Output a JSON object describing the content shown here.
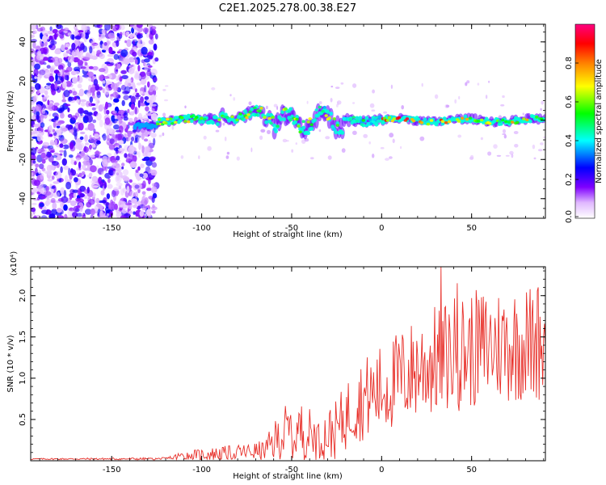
{
  "chart_data": [
    {
      "type": "heatmap",
      "title": "C2E1.2025.278.00.38.E27",
      "xlabel": "Height of straight line (km)",
      "ylabel": "Frequency (Hz)",
      "xlim": [
        -195,
        91
      ],
      "ylim": [
        -50,
        49
      ],
      "xticks": [
        -150,
        -100,
        -50,
        0,
        50
      ],
      "yticks": [
        -40,
        -20,
        0,
        20,
        40
      ],
      "colorbar": {
        "label": "Normalized spectral amplitude",
        "range": [
          0,
          1
        ],
        "ticks": [
          "0.0",
          "0.2",
          "0.4",
          "0.6",
          "0.8"
        ],
        "colors": [
          "#ffffff",
          "#7f00ff",
          "#0000ff",
          "#00ffff",
          "#00ff00",
          "#ffff00",
          "#ff7f00",
          "#ff0000",
          "#ff007f"
        ]
      },
      "regions": [
        {
          "name": "noise",
          "x": [
            -195,
            -125
          ],
          "freq_spread": [
            -50,
            49
          ],
          "amplitude": "low"
        },
        {
          "name": "ridge",
          "x": [
            -137,
            91
          ],
          "center_freq_hz": 0,
          "amplitude": "high near 0 Hz"
        }
      ]
    },
    {
      "type": "line",
      "xlabel": "Height of straight line (km)",
      "ylabel": "SNR (10 * v/v)",
      "scale_label": "(x10⁴)",
      "xlim": [
        -195,
        91
      ],
      "ylim": [
        0,
        2.35
      ],
      "xticks": [
        -150,
        -100,
        -50,
        0,
        50
      ],
      "yticks": [
        "0.5",
        "1.0",
        "1.5",
        "2.0"
      ],
      "series_color": "#e8302a",
      "envelope": [
        {
          "x": -195,
          "base": 0.02,
          "amp": 0.01
        },
        {
          "x": -120,
          "base": 0.02,
          "amp": 0.02
        },
        {
          "x": -110,
          "base": 0.05,
          "amp": 0.08
        },
        {
          "x": -80,
          "base": 0.08,
          "amp": 0.12
        },
        {
          "x": -65,
          "base": 0.1,
          "amp": 0.15
        },
        {
          "x": -55,
          "base": 0.25,
          "amp": 0.45
        },
        {
          "x": -45,
          "base": 0.3,
          "amp": 0.45
        },
        {
          "x": -35,
          "base": 0.22,
          "amp": 0.35
        },
        {
          "x": -25,
          "base": 0.3,
          "amp": 0.45
        },
        {
          "x": -15,
          "base": 0.6,
          "amp": 0.6
        },
        {
          "x": 0,
          "base": 0.75,
          "amp": 0.7
        },
        {
          "x": 20,
          "base": 1.0,
          "amp": 0.8
        },
        {
          "x": 40,
          "base": 1.15,
          "amp": 0.9
        },
        {
          "x": 60,
          "base": 1.25,
          "amp": 0.9
        },
        {
          "x": 91,
          "base": 1.3,
          "amp": 0.9
        }
      ],
      "peaks": [
        {
          "x": 33,
          "y": 2.35
        },
        {
          "x": 42,
          "y": 2.15
        },
        {
          "x": 87,
          "y": 2.1
        }
      ]
    }
  ]
}
